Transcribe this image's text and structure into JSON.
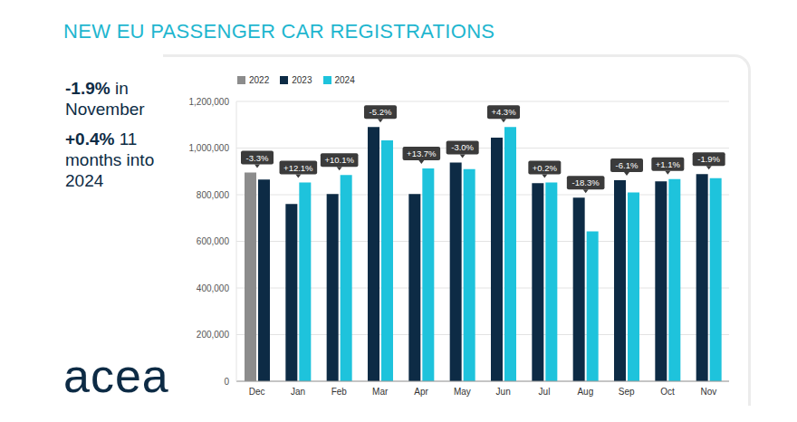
{
  "chart_data": {
    "type": "bar",
    "title": "NEW EU PASSENGER CAR REGISTRATIONS",
    "categories": [
      "Dec",
      "Jan",
      "Feb",
      "Mar",
      "Apr",
      "May",
      "Jun",
      "Jul",
      "Aug",
      "Sep",
      "Oct",
      "Nov"
    ],
    "series": [
      {
        "name": "2022",
        "color": "#8c8c8c",
        "values": [
          895000,
          null,
          null,
          null,
          null,
          null,
          null,
          null,
          null,
          null,
          null,
          null
        ]
      },
      {
        "name": "2023",
        "color": "#0d2b45",
        "values": [
          865000,
          760000,
          803000,
          1090000,
          803000,
          938000,
          1045000,
          850000,
          787000,
          862000,
          857000,
          888000
        ]
      },
      {
        "name": "2024",
        "color": "#1ec3dc",
        "values": [
          null,
          852000,
          884000,
          1033000,
          913000,
          910000,
          1090000,
          852000,
          643000,
          810000,
          867000,
          871000
        ]
      }
    ],
    "annotations": [
      "-3.3%",
      "+12.1%",
      "+10.1%",
      "-5.2%",
      "+13.7%",
      "-3.0%",
      "+4.3%",
      "+0.2%",
      "-18.3%",
      "-6.1%",
      "+1.1%",
      "-1.9%"
    ],
    "ylim": [
      0,
      1200000
    ],
    "yticks": [
      {
        "value": 0,
        "label": "0"
      },
      {
        "value": 200000,
        "label": "200,000"
      },
      {
        "value": 400000,
        "label": "400,000"
      },
      {
        "value": 600000,
        "label": "600,000"
      },
      {
        "value": 800000,
        "label": "800,000"
      },
      {
        "value": 1000000,
        "label": "1,000,000"
      },
      {
        "value": 1200000,
        "label": "1,200,000"
      }
    ],
    "grid": true,
    "legend": "top",
    "highlights": [
      {
        "figure": "-1.9%",
        "text": "in November"
      },
      {
        "figure": "+0.4%",
        "text": "11 months into 2024"
      }
    ],
    "logo": "acea"
  }
}
